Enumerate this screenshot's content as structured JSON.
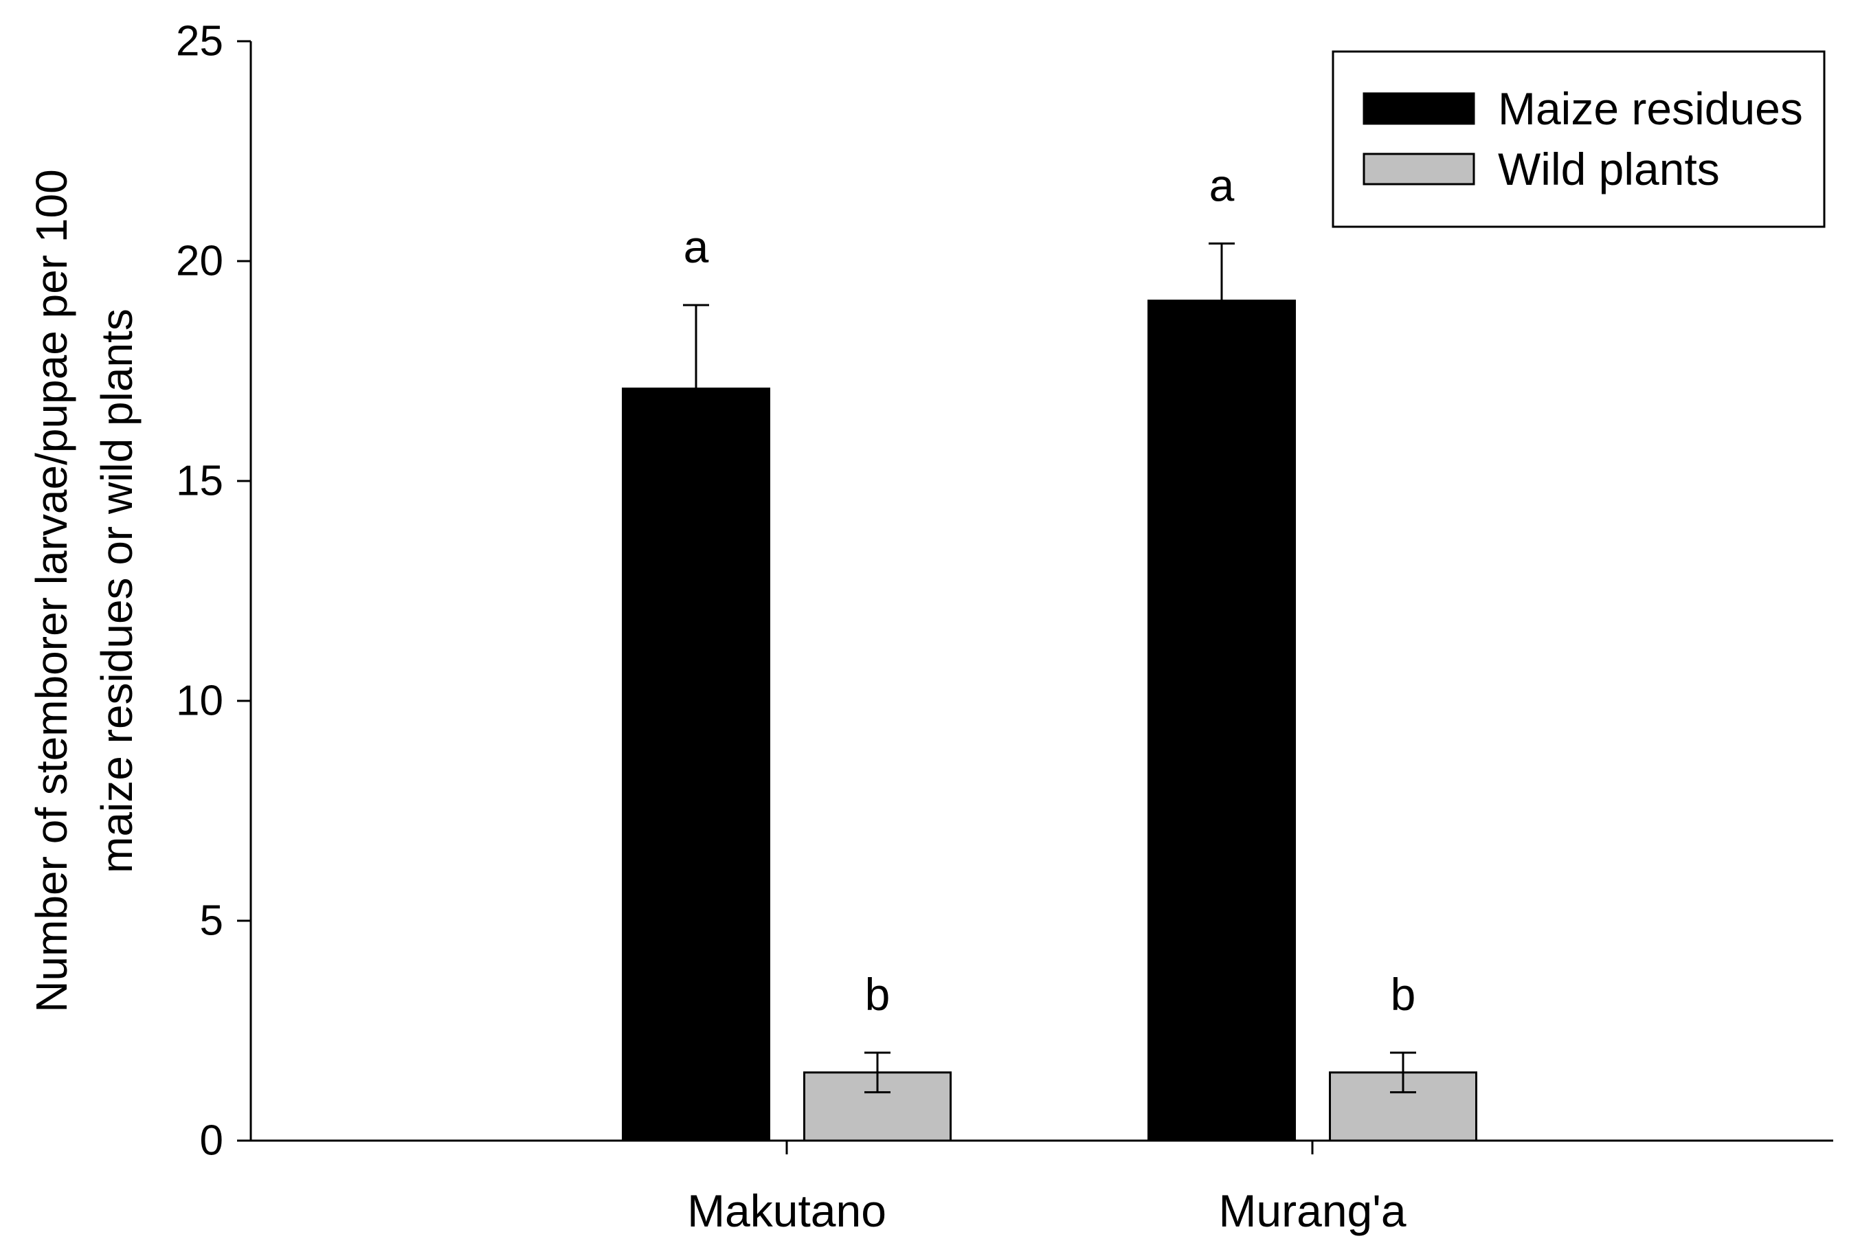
{
  "chart_data": {
    "type": "bar",
    "title": "",
    "xlabel": "",
    "ylabel": [
      "Number of stemborer larvae/pupae per 100",
      "maize residues or wild plants"
    ],
    "ylim": [
      0,
      25
    ],
    "yticks": [
      0,
      5,
      10,
      15,
      20,
      25
    ],
    "categories": [
      "Makutano",
      "Murang'a"
    ],
    "series": [
      {
        "name": "Maize residues",
        "color": "#000000",
        "values": [
          17.1,
          19.1
        ],
        "errors": [
          1.9,
          1.3
        ],
        "significance": [
          "a",
          "a"
        ]
      },
      {
        "name": "Wild plants",
        "color": "#c0c0c0",
        "values": [
          1.55,
          1.55
        ],
        "errors": [
          0.45,
          0.45
        ],
        "significance": [
          "b",
          "b"
        ]
      }
    ],
    "legend": {
      "position": "top-right",
      "entries": [
        "Maize residues",
        "Wild plants"
      ]
    },
    "grid": false
  }
}
